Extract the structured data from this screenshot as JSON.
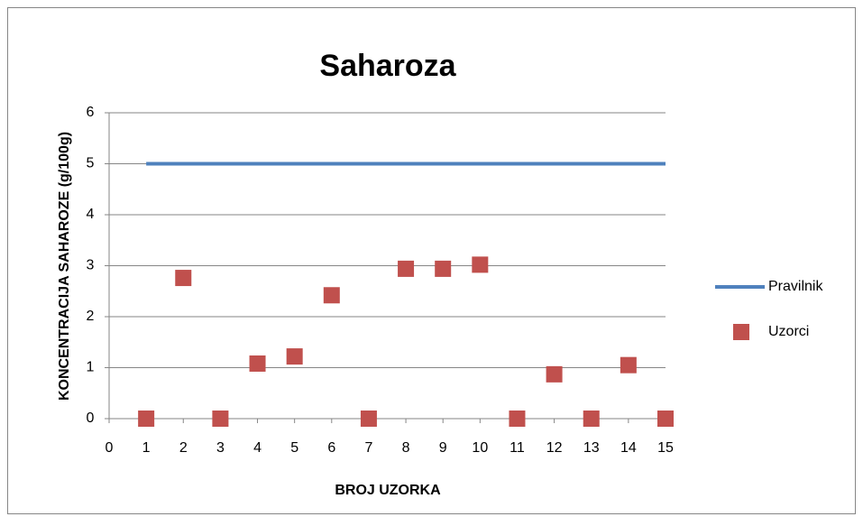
{
  "chart_data": {
    "type": "scatter",
    "title": "Saharoza",
    "x_label": "BROJ UZORKA",
    "y_label": "KONCENTRACIJA SAHAROZE  (g/100g)",
    "xlim": [
      0,
      15
    ],
    "xticks": [
      0,
      1,
      2,
      3,
      4,
      5,
      6,
      7,
      8,
      9,
      10,
      11,
      12,
      13,
      14,
      15
    ],
    "ylim": [
      0,
      6
    ],
    "yticks": [
      0,
      1,
      2,
      3,
      4,
      5,
      6
    ],
    "grid": true,
    "legend": "right",
    "series": [
      {
        "name": "Pravilnik",
        "type": "line",
        "color": "#4f81bd",
        "x": [
          1,
          2,
          3,
          4,
          5,
          6,
          7,
          8,
          9,
          10,
          11,
          12,
          13,
          14,
          15
        ],
        "values": [
          5,
          5,
          5,
          5,
          5,
          5,
          5,
          5,
          5,
          5,
          5,
          5,
          5,
          5,
          5
        ]
      },
      {
        "name": "Uzorci",
        "type": "scatter",
        "color": "#c0504d",
        "x": [
          1,
          2,
          3,
          4,
          5,
          6,
          7,
          8,
          9,
          10,
          11,
          12,
          13,
          14,
          15
        ],
        "values": [
          0,
          2.76,
          0,
          1.08,
          1.22,
          2.42,
          0,
          2.94,
          2.94,
          3.02,
          0,
          0.87,
          0,
          1.05,
          0
        ]
      }
    ]
  }
}
